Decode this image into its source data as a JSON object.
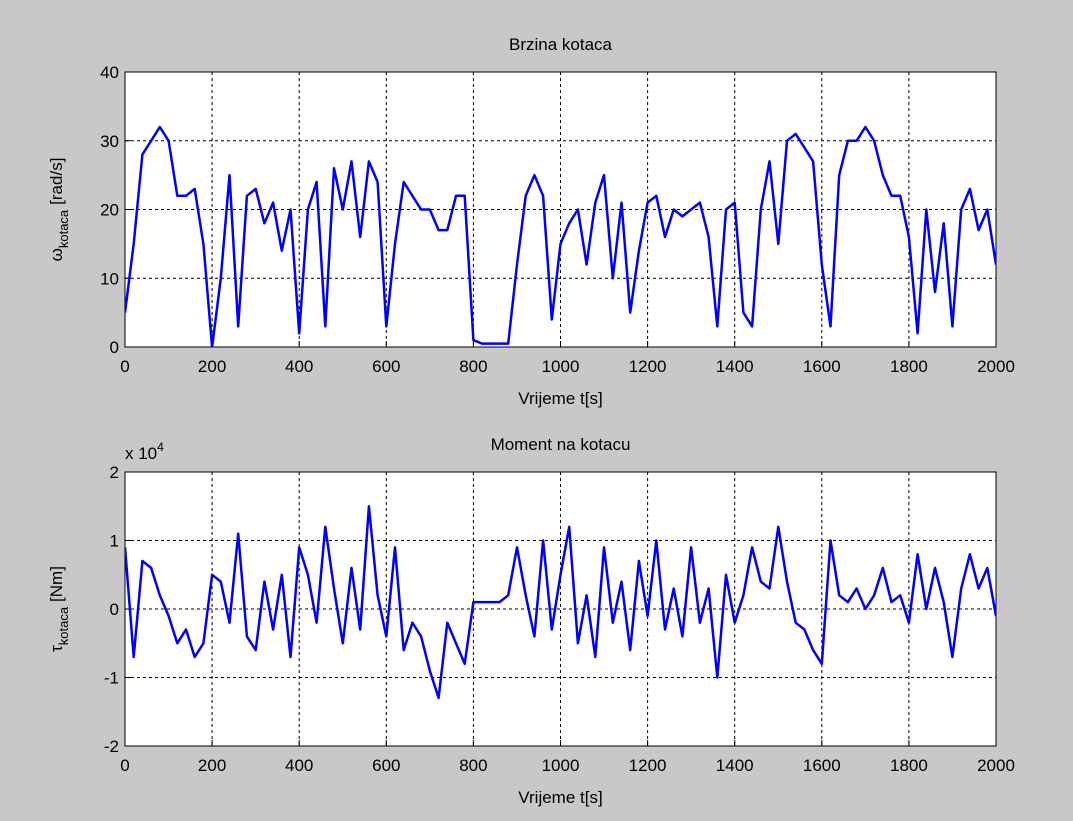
{
  "chart_data": [
    {
      "type": "line",
      "title": "Brzina kotaca",
      "xlabel": "Vrijeme t[s]",
      "ylabel": {
        "symbol": "ω",
        "subscript": "kotaca",
        "unit": "[rad/s]"
      },
      "xlim": [
        0,
        2000
      ],
      "xticks": [
        0,
        200,
        400,
        600,
        800,
        1000,
        1200,
        1400,
        1600,
        1800,
        2000
      ],
      "ylim": [
        0,
        40
      ],
      "yticks": [
        0,
        10,
        20,
        30,
        40
      ],
      "grid": true,
      "x": [
        0,
        20,
        40,
        60,
        80,
        100,
        120,
        140,
        160,
        180,
        200,
        220,
        240,
        260,
        280,
        300,
        320,
        340,
        360,
        380,
        400,
        420,
        440,
        460,
        480,
        500,
        520,
        540,
        560,
        580,
        600,
        620,
        640,
        660,
        680,
        700,
        720,
        740,
        760,
        780,
        800,
        820,
        840,
        860,
        880,
        900,
        920,
        940,
        960,
        980,
        1000,
        1020,
        1040,
        1060,
        1080,
        1100,
        1120,
        1140,
        1160,
        1180,
        1200,
        1220,
        1240,
        1260,
        1280,
        1300,
        1320,
        1340,
        1360,
        1380,
        1400,
        1420,
        1440,
        1460,
        1480,
        1500,
        1520,
        1540,
        1560,
        1580,
        1600,
        1620,
        1640,
        1660,
        1680,
        1700,
        1720,
        1740,
        1760,
        1780,
        1800,
        1820,
        1840,
        1860,
        1880,
        1900,
        1920,
        1940,
        1960,
        1980,
        2000
      ],
      "series": [
        {
          "color": "#0000ff",
          "values": [
            5,
            15,
            28,
            30,
            32,
            30,
            22,
            22,
            23,
            15,
            0,
            10,
            25,
            3,
            22,
            23,
            18,
            21,
            14,
            20,
            2,
            20,
            24,
            3,
            26,
            20,
            27,
            16,
            27,
            24,
            3,
            15,
            24,
            22,
            20,
            20,
            17,
            17,
            22,
            22,
            1,
            0.5,
            0.5,
            0.5,
            0.5,
            12,
            22,
            25,
            22,
            4,
            15,
            18,
            20,
            12,
            21,
            25,
            10,
            21,
            5,
            14,
            21,
            22,
            16,
            20,
            19,
            20,
            21,
            16,
            3,
            20,
            21,
            5,
            3,
            20,
            27,
            15,
            30,
            31,
            29,
            27,
            12,
            3,
            25,
            30,
            30,
            32,
            30,
            25,
            22,
            22,
            16,
            2,
            20,
            8,
            18,
            3,
            20,
            23,
            17,
            20,
            12
          ]
        }
      ]
    },
    {
      "type": "line",
      "title": "Moment na kotacu",
      "xlabel": "Vrijeme t[s]",
      "ylabel": {
        "symbol": "τ",
        "subscript": "kotaca",
        "unit": "[Nm]"
      },
      "scale_label": {
        "base": "x 10",
        "exponent": "4"
      },
      "xlim": [
        0,
        2000
      ],
      "xticks": [
        0,
        200,
        400,
        600,
        800,
        1000,
        1200,
        1400,
        1600,
        1800,
        2000
      ],
      "ylim": [
        -2,
        2
      ],
      "yticks": [
        -2,
        -1,
        0,
        1,
        2
      ],
      "grid": true,
      "x": [
        0,
        20,
        40,
        60,
        80,
        100,
        120,
        140,
        160,
        180,
        200,
        220,
        240,
        260,
        280,
        300,
        320,
        340,
        360,
        380,
        400,
        420,
        440,
        460,
        480,
        500,
        520,
        540,
        560,
        580,
        600,
        620,
        640,
        660,
        680,
        700,
        720,
        740,
        760,
        780,
        800,
        820,
        840,
        860,
        880,
        900,
        920,
        940,
        960,
        980,
        1000,
        1020,
        1040,
        1060,
        1080,
        1100,
        1120,
        1140,
        1160,
        1180,
        1200,
        1220,
        1240,
        1260,
        1280,
        1300,
        1320,
        1340,
        1360,
        1380,
        1400,
        1420,
        1440,
        1460,
        1480,
        1500,
        1520,
        1540,
        1560,
        1580,
        1600,
        1620,
        1640,
        1660,
        1680,
        1700,
        1720,
        1740,
        1760,
        1780,
        1800,
        1820,
        1840,
        1860,
        1880,
        1900,
        1920,
        1940,
        1960,
        1980,
        2000
      ],
      "series": [
        {
          "color": "#0000ff",
          "values": [
            0.9,
            -0.7,
            0.7,
            0.6,
            0.2,
            -0.1,
            -0.5,
            -0.3,
            -0.7,
            -0.5,
            0.5,
            0.4,
            -0.2,
            1.1,
            -0.4,
            -0.6,
            0.4,
            -0.3,
            0.5,
            -0.7,
            0.9,
            0.5,
            -0.2,
            1.2,
            0.3,
            -0.5,
            0.6,
            -0.3,
            1.5,
            0.2,
            -0.4,
            0.9,
            -0.6,
            -0.2,
            -0.4,
            -0.9,
            -1.3,
            -0.2,
            -0.5,
            -0.8,
            0.1,
            0.1,
            0.1,
            0.1,
            0.2,
            0.9,
            0.2,
            -0.4,
            1.0,
            -0.3,
            0.5,
            1.2,
            -0.5,
            0.2,
            -0.7,
            0.9,
            -0.2,
            0.4,
            -0.6,
            0.7,
            -0.1,
            1.0,
            -0.3,
            0.3,
            -0.4,
            0.9,
            -0.2,
            0.3,
            -1.0,
            0.5,
            -0.2,
            0.2,
            0.9,
            0.4,
            0.3,
            1.2,
            0.4,
            -0.2,
            -0.3,
            -0.6,
            -0.8,
            1.0,
            0.2,
            0.1,
            0.3,
            0.0,
            0.2,
            0.6,
            0.1,
            0.2,
            -0.2,
            0.8,
            0.0,
            0.6,
            0.1,
            -0.7,
            0.3,
            0.8,
            0.3,
            0.6,
            -0.1
          ]
        }
      ]
    }
  ]
}
